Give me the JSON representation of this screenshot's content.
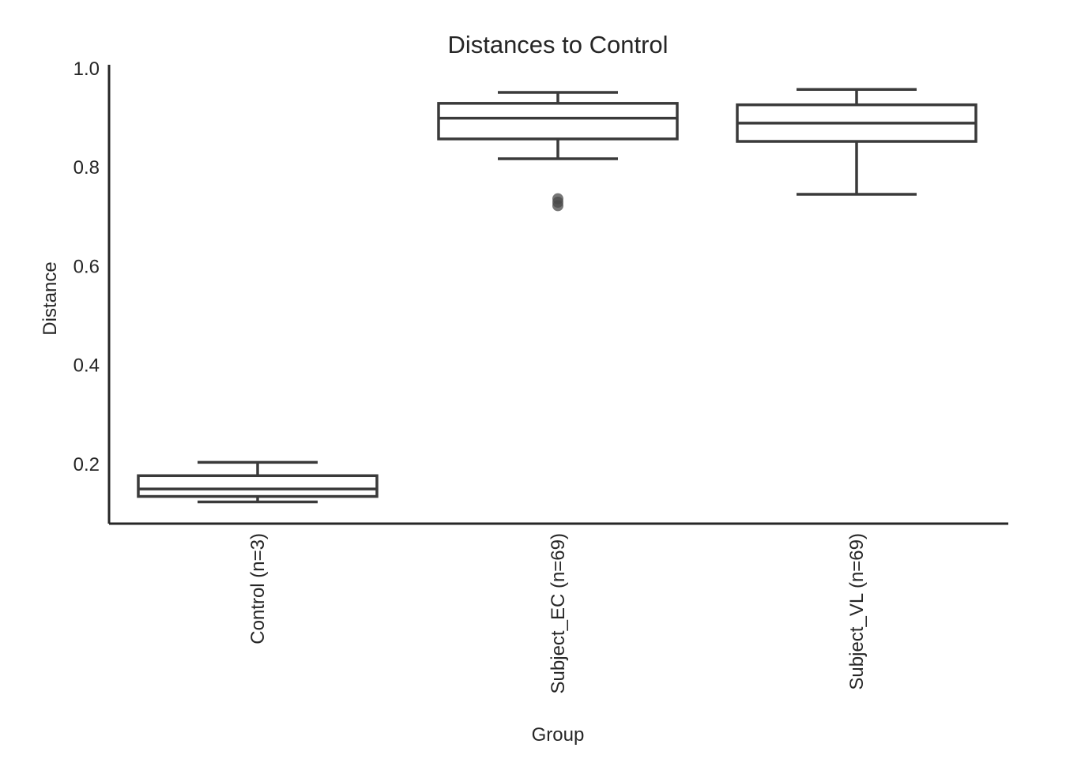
{
  "chart_data": {
    "type": "box",
    "title": "Distances to Control",
    "xlabel": "Group",
    "ylabel": "Distance",
    "ylim": [
      0.08,
      1.0
    ],
    "yticks": [
      0.2,
      0.4,
      0.6,
      0.8,
      1.0
    ],
    "ytick_labels": [
      "0.2",
      "0.4",
      "0.6",
      "0.8",
      "1.0"
    ],
    "grid": false,
    "categories": [
      "Control (n=3)",
      "Subject_EC (n=69)",
      "Subject_VL (n=69)"
    ],
    "boxes": [
      {
        "category": "Control (n=3)",
        "whisker_low": 0.124,
        "q1": 0.135,
        "median": 0.15,
        "q3": 0.177,
        "whisker_high": 0.204,
        "outliers": []
      },
      {
        "category": "Subject_EC (n=69)",
        "whisker_low": 0.818,
        "q1": 0.858,
        "median": 0.9,
        "q3": 0.93,
        "whisker_high": 0.952,
        "outliers": [
          0.737,
          0.73,
          0.723
        ]
      },
      {
        "category": "Subject_VL (n=69)",
        "whisker_low": 0.746,
        "q1": 0.853,
        "median": 0.89,
        "q3": 0.927,
        "whisker_high": 0.958,
        "outliers": []
      }
    ]
  }
}
